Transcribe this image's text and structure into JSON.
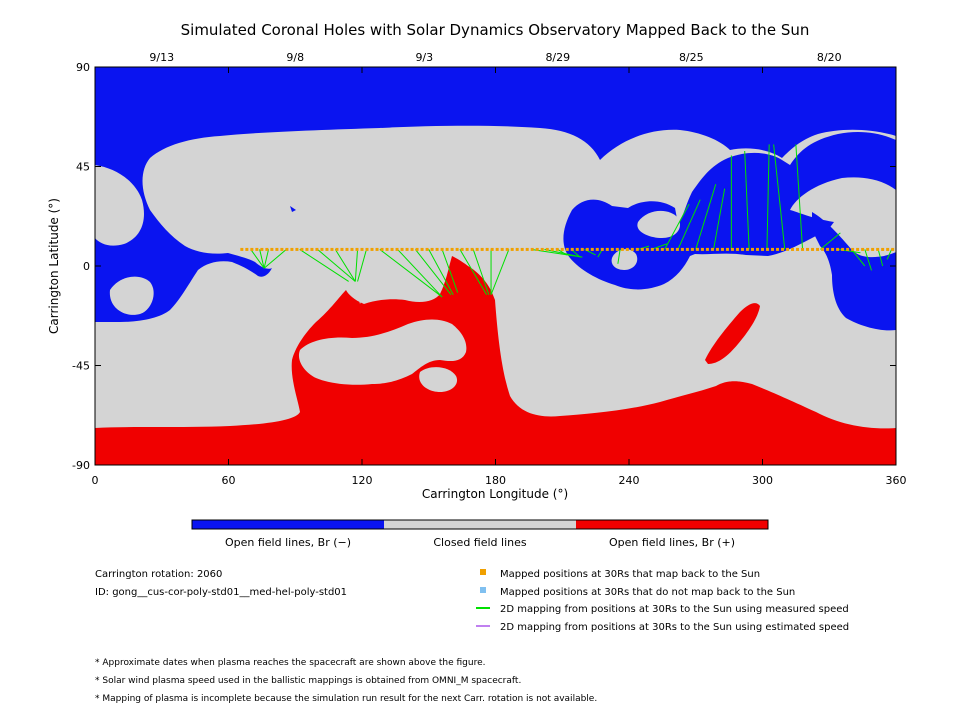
{
  "chart_data": {
    "type": "map",
    "title": "Simulated Coronal Holes with Solar Dynamics Observatory Mapped Back to the Sun",
    "xlabel": "Carrington Longitude (°)",
    "ylabel": "Carrington Latitude (°)",
    "xlim": [
      0,
      360
    ],
    "ylim": [
      -90,
      90
    ],
    "x_ticks": [
      "0",
      "60",
      "120",
      "180",
      "240",
      "300",
      "360"
    ],
    "y_ticks": [
      "90",
      "45",
      "0",
      "-45",
      "-90"
    ],
    "date_ticks": [
      {
        "label": "9/13",
        "lon": 30
      },
      {
        "label": "9/8",
        "lon": 90
      },
      {
        "label": "9/3",
        "lon": 148
      },
      {
        "label": "8/29",
        "lon": 208
      },
      {
        "label": "8/25",
        "lon": 268
      },
      {
        "label": "8/20",
        "lon": 330
      }
    ],
    "colorbar": [
      {
        "label": "Open field lines, Br (−)",
        "color": "#0a14f0"
      },
      {
        "label": "Closed field lines",
        "color": "#d4d4d4"
      },
      {
        "label": "Open field lines, Br (+)",
        "color": "#f00000"
      }
    ],
    "colors": {
      "negative": "#0a14f0",
      "closed": "#d4d4d4",
      "positive": "#f00000",
      "mapped": "#f0a000",
      "unmapped": "#80c0f0",
      "measured": "#00e000",
      "estimated": "#c080f0"
    },
    "spacecraft_track_lat": 7.5,
    "mapped_points": {
      "lon_start": 66,
      "lon_end": 360,
      "lat": 7.5,
      "mappings": [
        {
          "from": 70,
          "to_lon": 76,
          "to_lat": -1
        },
        {
          "from": 74,
          "to_lon": 76,
          "to_lat": -1
        },
        {
          "from": 78,
          "to_lon": 76,
          "to_lat": -1
        },
        {
          "from": 86,
          "to_lon": 76,
          "to_lat": -1
        },
        {
          "from": 92,
          "to_lon": 114,
          "to_lat": -7
        },
        {
          "from": 100,
          "to_lon": 117,
          "to_lat": -7
        },
        {
          "from": 108,
          "to_lon": 117,
          "to_lat": -7
        },
        {
          "from": 118,
          "to_lon": 117,
          "to_lat": -7
        },
        {
          "from": 122,
          "to_lon": 118,
          "to_lat": -7
        },
        {
          "from": 128,
          "to_lon": 156,
          "to_lat": -14
        },
        {
          "from": 136,
          "to_lon": 156,
          "to_lat": -14
        },
        {
          "from": 144,
          "to_lon": 160,
          "to_lat": -13
        },
        {
          "from": 150,
          "to_lon": 161,
          "to_lat": -13
        },
        {
          "from": 156,
          "to_lon": 163,
          "to_lat": -12
        },
        {
          "from": 164,
          "to_lon": 176,
          "to_lat": -13
        },
        {
          "from": 170,
          "to_lon": 177,
          "to_lat": -13
        },
        {
          "from": 178,
          "to_lon": 178,
          "to_lat": -13
        },
        {
          "from": 186,
          "to_lon": 178,
          "to_lat": -13
        },
        {
          "from": 196,
          "to_lon": 219,
          "to_lat": 4
        },
        {
          "from": 202,
          "to_lon": 219,
          "to_lat": 4
        },
        {
          "from": 208,
          "to_lon": 212,
          "to_lat": 5
        },
        {
          "from": 214,
          "to_lon": 218,
          "to_lat": 4
        },
        {
          "from": 220,
          "to_lon": 225,
          "to_lat": 5
        },
        {
          "from": 228,
          "to_lon": 226,
          "to_lat": 4
        },
        {
          "from": 236,
          "to_lon": 235,
          "to_lat": 1
        },
        {
          "from": 244,
          "to_lon": 249,
          "to_lat": 9
        },
        {
          "from": 250,
          "to_lon": 257,
          "to_lat": 10
        },
        {
          "from": 256,
          "to_lon": 267,
          "to_lat": 28
        },
        {
          "from": 262,
          "to_lon": 272,
          "to_lat": 30
        },
        {
          "from": 270,
          "to_lon": 279,
          "to_lat": 37
        },
        {
          "from": 278,
          "to_lon": 283,
          "to_lat": 35
        },
        {
          "from": 286,
          "to_lon": 286,
          "to_lat": 50
        },
        {
          "from": 294,
          "to_lon": 292,
          "to_lat": 52
        },
        {
          "from": 302,
          "to_lon": 303,
          "to_lat": 55
        },
        {
          "from": 310,
          "to_lon": 305,
          "to_lat": 55
        },
        {
          "from": 318,
          "to_lon": 315,
          "to_lat": 55
        },
        {
          "from": 326,
          "to_lon": 335,
          "to_lat": 15
        },
        {
          "from": 334,
          "to_lon": 344,
          "to_lat": 6
        },
        {
          "from": 340,
          "to_lon": 346,
          "to_lat": 0
        },
        {
          "from": 346,
          "to_lon": 349,
          "to_lat": -2
        },
        {
          "from": 352,
          "to_lon": 354,
          "to_lat": 0
        },
        {
          "from": 358,
          "to_lon": 356,
          "to_lat": 3
        }
      ]
    },
    "legend": [
      {
        "marker": "square",
        "color": "#f0a000",
        "label": "Mapped positions at 30Rs that map back to the Sun"
      },
      {
        "marker": "square",
        "color": "#80c0f0",
        "label": "Mapped positions at 30Rs that do not map back to the Sun"
      },
      {
        "marker": "line",
        "color": "#00e000",
        "label": "2D mapping from positions at 30Rs to the Sun using measured speed"
      },
      {
        "marker": "line",
        "color": "#c080f0",
        "label": "2D mapping from positions at 30Rs to the Sun using estimated speed"
      }
    ],
    "info": [
      "Carrington rotation: 2060",
      "ID: gong__cus-cor-poly-std01__med-hel-poly-std01"
    ],
    "notes": [
      "* Approximate dates when plasma reaches the spacecraft are shown above the figure.",
      "* Solar wind plasma speed used in the ballistic mappings is obtained from OMNI_M spacecraft.",
      "* Mapping of plasma is incomplete because the simulation run result for the next Carr. rotation is not available."
    ]
  }
}
